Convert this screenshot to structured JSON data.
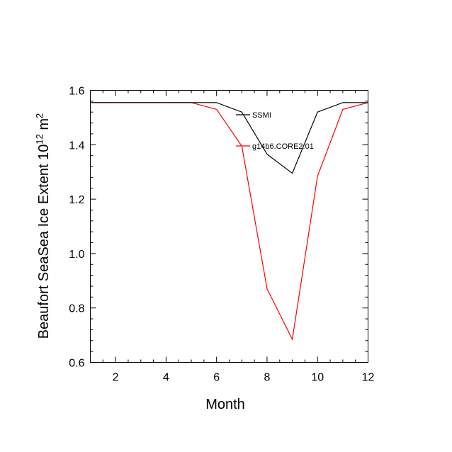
{
  "chart_data": {
    "type": "line",
    "xlabel": "Month",
    "ylabel_main": "Beaufort SeaSea Ice Extent 10",
    "ylabel_exp": "12",
    "ylabel_unit": " m",
    "ylabel_unit_exp": "2",
    "xlim": [
      1,
      12
    ],
    "ylim": [
      0.6,
      1.6
    ],
    "xticks": [
      2,
      4,
      6,
      8,
      10,
      12
    ],
    "yticks": [
      0.6,
      0.8,
      1.0,
      1.2,
      1.4,
      1.6
    ],
    "ytick_labels": [
      "0.6",
      "0.8",
      "1.0",
      "1.2",
      "1.4",
      "1.6"
    ],
    "legend_position": "top-right-inside",
    "series": [
      {
        "name": "SSMI",
        "color": "#000000",
        "x": [
          1,
          2,
          3,
          4,
          5,
          6,
          7,
          8,
          9,
          10,
          11,
          12
        ],
        "y": [
          1.555,
          1.555,
          1.555,
          1.555,
          1.555,
          1.555,
          1.52,
          1.365,
          1.295,
          1.52,
          1.555,
          1.555
        ]
      },
      {
        "name": "g14b6.CORE2.01",
        "color": "#ff0000",
        "x": [
          1,
          2,
          3,
          4,
          5,
          6,
          7,
          8,
          9,
          10,
          11,
          12
        ],
        "y": [
          1.555,
          1.555,
          1.555,
          1.555,
          1.555,
          1.53,
          1.395,
          0.87,
          0.685,
          1.285,
          1.53,
          1.555
        ]
      }
    ]
  }
}
